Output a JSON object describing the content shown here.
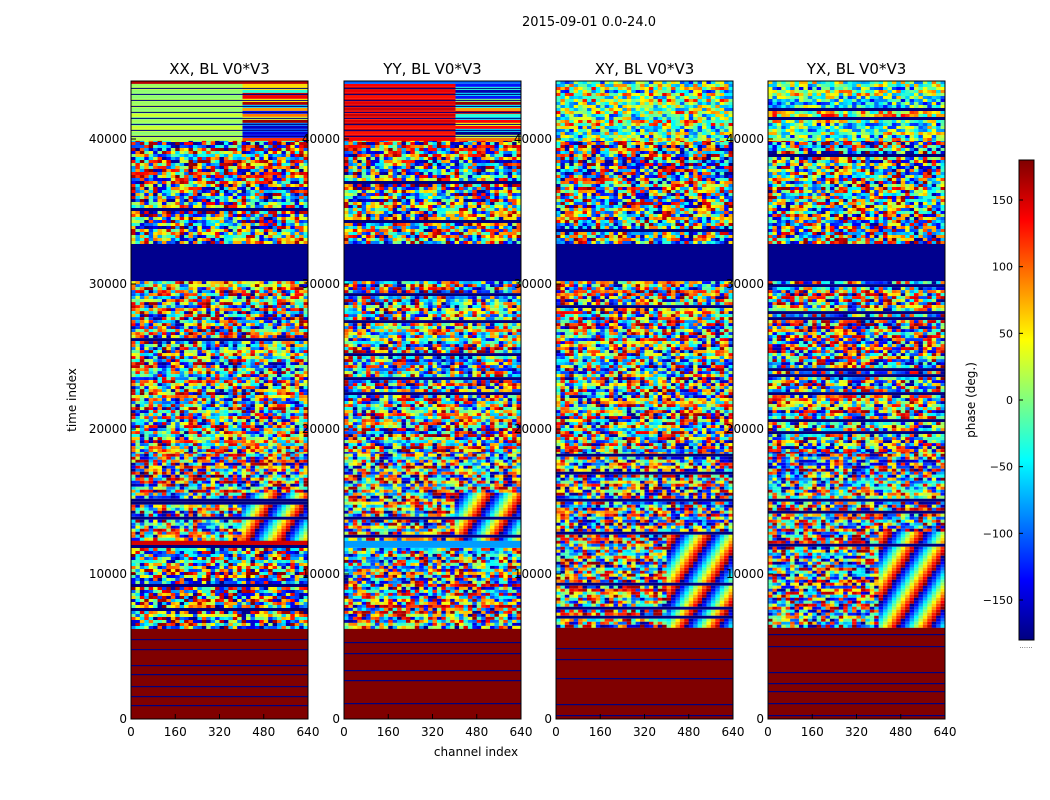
{
  "figure": {
    "suptitle": "2015-09-01 0.0-24.0",
    "xlabel": "channel index",
    "ylabel": "time index",
    "colorbar": {
      "label": "phase (deg.)",
      "ticks": [
        150,
        100,
        50,
        0,
        -50,
        -100,
        -150
      ],
      "tick_labels": [
        "150",
        "100",
        "50",
        "0",
        "−50",
        "−100",
        "−150"
      ],
      "range": [
        -180,
        180
      ],
      "colormap": "jet",
      "footnote": "......"
    }
  },
  "chart_data": [
    {
      "type": "heatmap",
      "title": "XX, BL V0*V3",
      "xlabel": "",
      "ylabel": "time index",
      "xlim": [
        0,
        640
      ],
      "ylim": [
        0,
        44000
      ],
      "xticks": [
        0,
        160,
        320,
        480,
        640
      ],
      "yticks": [
        0,
        10000,
        20000,
        30000,
        40000
      ],
      "value_label": "phase (deg.)",
      "value_range": [
        -180,
        180
      ],
      "bands": [
        {
          "t0": 0,
          "t1": 6300,
          "pattern": "solid",
          "phase": 180
        },
        {
          "t0": 6300,
          "t1": 12000,
          "pattern": "noise"
        },
        {
          "t0": 12000,
          "t1": 12400,
          "pattern": "solid",
          "phase": 150
        },
        {
          "t0": 12400,
          "t1": 18500,
          "pattern": "noise-fringe"
        },
        {
          "t0": 18500,
          "t1": 30200,
          "pattern": "noise"
        },
        {
          "t0": 30200,
          "t1": 32800,
          "pattern": "solid",
          "phase": -175
        },
        {
          "t0": 32800,
          "t1": 40000,
          "pattern": "noise"
        },
        {
          "t0": 40000,
          "t1": 43800,
          "pattern": "striped",
          "phase": 15
        },
        {
          "t0": 43800,
          "t1": 44000,
          "pattern": "solid",
          "phase": 160
        }
      ]
    },
    {
      "type": "heatmap",
      "title": "YY, BL V0*V3",
      "xlabel": "channel index",
      "ylabel": "",
      "xlim": [
        0,
        640
      ],
      "ylim": [
        0,
        44000
      ],
      "xticks": [
        0,
        160,
        320,
        480,
        640
      ],
      "yticks": [
        0,
        10000,
        20000,
        30000,
        40000
      ],
      "value_label": "phase (deg.)",
      "value_range": [
        -180,
        180
      ],
      "bands": [
        {
          "t0": 0,
          "t1": 6300,
          "pattern": "solid",
          "phase": 180
        },
        {
          "t0": 6300,
          "t1": 11800,
          "pattern": "noise"
        },
        {
          "t0": 11800,
          "t1": 12300,
          "pattern": "solid",
          "phase": -80
        },
        {
          "t0": 12300,
          "t1": 18500,
          "pattern": "noise-fringe"
        },
        {
          "t0": 18500,
          "t1": 30200,
          "pattern": "noise"
        },
        {
          "t0": 30200,
          "t1": 32800,
          "pattern": "solid",
          "phase": -175
        },
        {
          "t0": 32800,
          "t1": 40000,
          "pattern": "noise"
        },
        {
          "t0": 40000,
          "t1": 43800,
          "pattern": "striped",
          "phase": 140
        },
        {
          "t0": 43800,
          "t1": 44000,
          "pattern": "solid",
          "phase": -100
        }
      ]
    },
    {
      "type": "heatmap",
      "title": "XY, BL V0*V3",
      "xlabel": "",
      "ylabel": "",
      "xlim": [
        0,
        640
      ],
      "ylim": [
        0,
        44000
      ],
      "xticks": [
        0,
        160,
        320,
        480,
        640
      ],
      "yticks": [
        0,
        10000,
        20000,
        30000,
        40000
      ],
      "value_label": "phase (deg.)",
      "value_range": [
        -180,
        180
      ],
      "bands": [
        {
          "t0": 0,
          "t1": 6300,
          "pattern": "solid",
          "phase": 180
        },
        {
          "t0": 6300,
          "t1": 18500,
          "pattern": "noise-fringe"
        },
        {
          "t0": 18500,
          "t1": 30200,
          "pattern": "noise"
        },
        {
          "t0": 30200,
          "t1": 32800,
          "pattern": "solid",
          "phase": -175
        },
        {
          "t0": 32800,
          "t1": 40000,
          "pattern": "noise"
        },
        {
          "t0": 40000,
          "t1": 44000,
          "pattern": "noise-light"
        }
      ]
    },
    {
      "type": "heatmap",
      "title": "YX, BL V0*V3",
      "xlabel": "",
      "ylabel": "",
      "xlim": [
        0,
        640
      ],
      "ylim": [
        0,
        44000
      ],
      "xticks": [
        0,
        160,
        320,
        480,
        640
      ],
      "yticks": [
        0,
        10000,
        20000,
        30000,
        40000
      ],
      "value_label": "phase (deg.)",
      "value_range": [
        -180,
        180
      ],
      "bands": [
        {
          "t0": 0,
          "t1": 6300,
          "pattern": "solid",
          "phase": 180
        },
        {
          "t0": 6300,
          "t1": 18500,
          "pattern": "noise-fringe"
        },
        {
          "t0": 18500,
          "t1": 30200,
          "pattern": "noise"
        },
        {
          "t0": 30200,
          "t1": 32800,
          "pattern": "solid",
          "phase": -175
        },
        {
          "t0": 32800,
          "t1": 40000,
          "pattern": "noise"
        },
        {
          "t0": 40000,
          "t1": 44000,
          "pattern": "noise-light"
        }
      ]
    }
  ]
}
